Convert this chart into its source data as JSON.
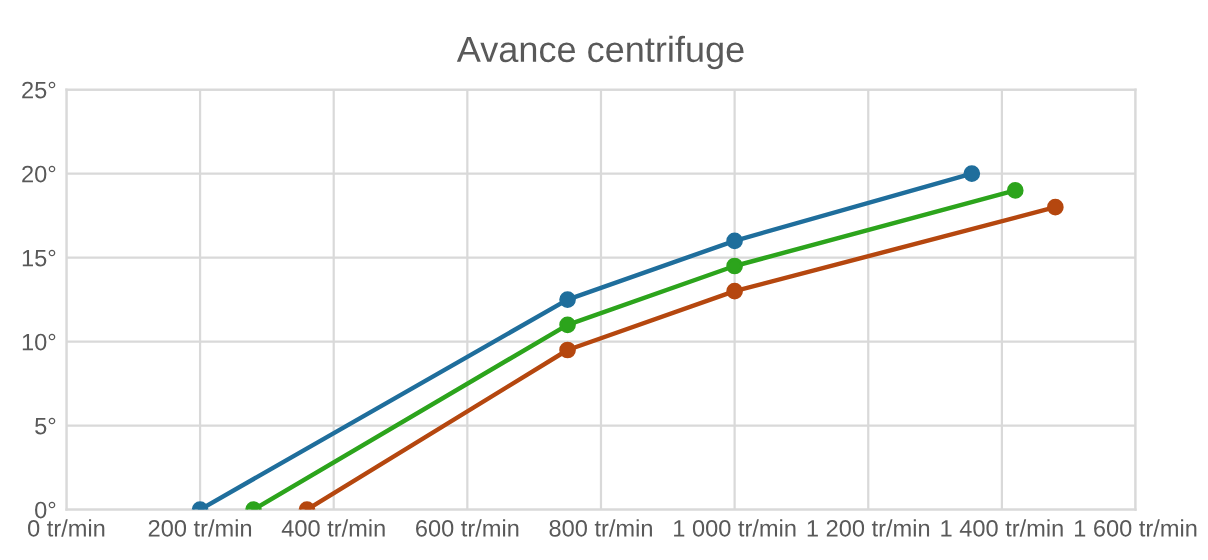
{
  "chart_data": {
    "type": "line",
    "title": "Avance centrifuge",
    "series": [
      {
        "color": "#1f6e9c",
        "x": [
          200,
          750,
          1000,
          1355
        ],
        "values": [
          0,
          12.5,
          16,
          20
        ]
      },
      {
        "color": "#2ca41c",
        "x": [
          280,
          750,
          1000,
          1420
        ],
        "values": [
          0,
          11,
          14.5,
          19
        ]
      },
      {
        "color": "#b5470f",
        "x": [
          360,
          750,
          1000,
          1480
        ],
        "values": [
          0,
          9.5,
          13,
          18
        ]
      }
    ],
    "xlim": [
      0,
      1600
    ],
    "ylim": [
      0,
      25
    ],
    "xticks": [
      {
        "value": 0,
        "label": "0 tr/min"
      },
      {
        "value": 200,
        "label": "200 tr/min"
      },
      {
        "value": 400,
        "label": "400 tr/min"
      },
      {
        "value": 600,
        "label": "600 tr/min"
      },
      {
        "value": 800,
        "label": "800 tr/min"
      },
      {
        "value": 1000,
        "label": "1 000 tr/min"
      },
      {
        "value": 1200,
        "label": "1 200 tr/min"
      },
      {
        "value": 1400,
        "label": "1 400 tr/min"
      },
      {
        "value": 1600,
        "label": "1 600 tr/min"
      }
    ],
    "yticks": [
      {
        "value": 0,
        "label": "0°"
      },
      {
        "value": 5,
        "label": "5°"
      },
      {
        "value": 10,
        "label": "10°"
      },
      {
        "value": 15,
        "label": "15°"
      },
      {
        "value": 20,
        "label": "20°"
      },
      {
        "value": 25,
        "label": "25°"
      }
    ],
    "grid": true,
    "marker": "circle",
    "line_style": "solid",
    "legend": false
  }
}
